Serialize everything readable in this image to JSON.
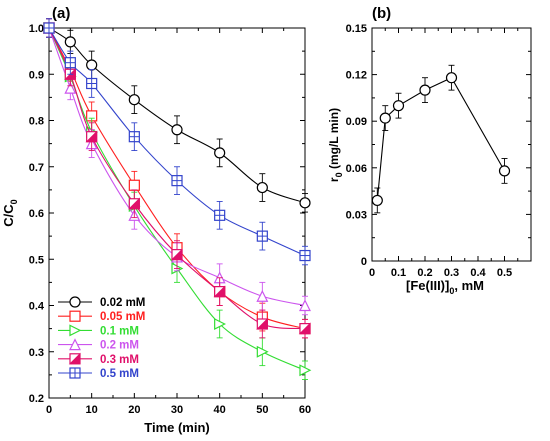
{
  "panels": [
    {
      "label": "(a)"
    },
    {
      "label": "(b)"
    }
  ],
  "chart_data": [
    {
      "panel": "(a)",
      "type": "line",
      "xlabel": "Time (min)",
      "ylabel": "C/C",
      "ylabel_sub": "0",
      "xlim": [
        0,
        60
      ],
      "ylim": [
        0.2,
        1.0
      ],
      "xticks": [
        0,
        10,
        20,
        30,
        40,
        50,
        60
      ],
      "yticks": [
        0.2,
        0.3,
        0.4,
        0.5,
        0.6,
        0.7,
        0.8,
        0.9,
        1.0
      ],
      "x": [
        0,
        5,
        10,
        20,
        30,
        40,
        50,
        60
      ],
      "legend_position": "bottom-left",
      "series": [
        {
          "name": "0.02 mM",
          "marker": "circle",
          "color": "#000000",
          "values": [
            1.0,
            0.97,
            0.92,
            0.845,
            0.78,
            0.73,
            0.655,
            0.622
          ],
          "errors": [
            0.02,
            0.025,
            0.03,
            0.03,
            0.03,
            0.03,
            0.03,
            0.02
          ]
        },
        {
          "name": "0.05 mM",
          "marker": "square",
          "color": "#ff2020",
          "values": [
            1.0,
            0.91,
            0.81,
            0.66,
            0.525,
            0.43,
            0.375,
            0.35
          ],
          "errors": [
            0.02,
            0.025,
            0.03,
            0.03,
            0.03,
            0.03,
            0.03,
            0.02
          ]
        },
        {
          "name": "0.1 mM",
          "marker": "triangle-right",
          "color": "#33dd33",
          "values": [
            1.0,
            0.895,
            0.775,
            0.615,
            0.48,
            0.36,
            0.3,
            0.26
          ],
          "errors": [
            0.02,
            0.025,
            0.03,
            0.03,
            0.03,
            0.03,
            0.03,
            0.02
          ]
        },
        {
          "name": "0.2 mM",
          "marker": "triangle-up",
          "color": "#cc55ee",
          "values": [
            1.0,
            0.87,
            0.75,
            0.595,
            0.505,
            0.46,
            0.42,
            0.4
          ],
          "errors": [
            0.02,
            0.025,
            0.03,
            0.03,
            0.03,
            0.03,
            0.03,
            0.02
          ]
        },
        {
          "name": "0.3 mM",
          "marker": "square-half",
          "color": "#e0106a",
          "values": [
            1.0,
            0.9,
            0.765,
            0.62,
            0.51,
            0.43,
            0.36,
            0.35
          ],
          "errors": [
            0.02,
            0.025,
            0.03,
            0.03,
            0.03,
            0.03,
            0.03,
            0.02
          ]
        },
        {
          "name": "0.5 mM",
          "marker": "square-cross",
          "color": "#3344cc",
          "values": [
            1.0,
            0.925,
            0.88,
            0.765,
            0.67,
            0.595,
            0.55,
            0.508
          ],
          "errors": [
            0.02,
            0.025,
            0.03,
            0.03,
            0.03,
            0.03,
            0.03,
            0.02
          ]
        }
      ]
    },
    {
      "panel": "(b)",
      "type": "line",
      "xlabel": "[Fe(III)]",
      "xlabel_sub": "0",
      "xlabel_suffix": ", mM",
      "ylabel": "r",
      "ylabel_sub": "0",
      "ylabel_suffix": " (mg/L min)",
      "xlim": [
        0,
        0.6
      ],
      "ylim": [
        0,
        0.15
      ],
      "xticks": [
        0,
        0.1,
        0.2,
        0.3,
        0.4,
        0.5
      ],
      "yticks": [
        0,
        0.03,
        0.06,
        0.09,
        0.12,
        0.15
      ],
      "x": [
        0.02,
        0.05,
        0.1,
        0.2,
        0.3,
        0.5
      ],
      "series": [
        {
          "marker": "circle",
          "color": "#000000",
          "values": [
            0.039,
            0.092,
            0.1,
            0.11,
            0.118,
            0.058
          ],
          "errors": [
            0.008,
            0.008,
            0.008,
            0.008,
            0.008,
            0.008
          ]
        }
      ]
    }
  ]
}
